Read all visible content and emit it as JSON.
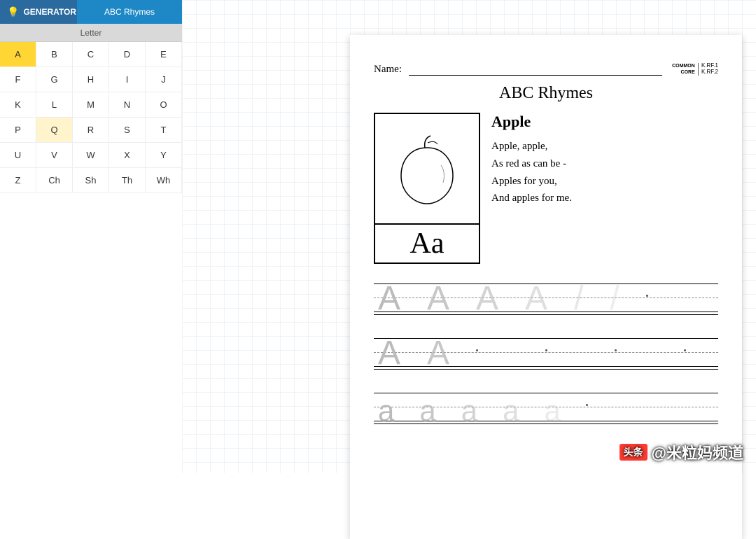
{
  "tabs": {
    "generator": "GENERATOR",
    "rhymes": "ABC Rhymes"
  },
  "section": {
    "title": "Letter"
  },
  "letters": [
    "A",
    "B",
    "C",
    "D",
    "E",
    "F",
    "G",
    "H",
    "I",
    "J",
    "K",
    "L",
    "M",
    "N",
    "O",
    "P",
    "Q",
    "R",
    "S",
    "T",
    "U",
    "V",
    "W",
    "X",
    "Y",
    "Z",
    "Ch",
    "Sh",
    "Th",
    "Wh"
  ],
  "selected_letter": "A",
  "highlight_letter": "Q",
  "worksheet": {
    "name_label": "Name:",
    "cc_top": "COMMON",
    "cc_bottom": "CORE",
    "cc_code1": "K.RF.1",
    "cc_code2": "K.RF.2",
    "title": "ABC Rhymes",
    "letter_display_upper": "A",
    "letter_display_lower": "a",
    "rhyme_title": "Apple",
    "rhyme_lines": [
      "Apple, apple,",
      "As red as can be -",
      "Apples for you,",
      "And apples for me."
    ],
    "trace_upper": "A",
    "trace_lower": "a"
  },
  "watermark": {
    "badge": "头条",
    "text": "@米粒妈频道"
  },
  "colors": {
    "tab_generator_bg": "#2a6a9e",
    "tab_rhymes_bg": "#1e88c7",
    "selected_bg": "#ffd633",
    "highlight_bg": "#fff4cc",
    "section_bg": "#d9d9d9",
    "grid_line": "#eef3f6"
  }
}
